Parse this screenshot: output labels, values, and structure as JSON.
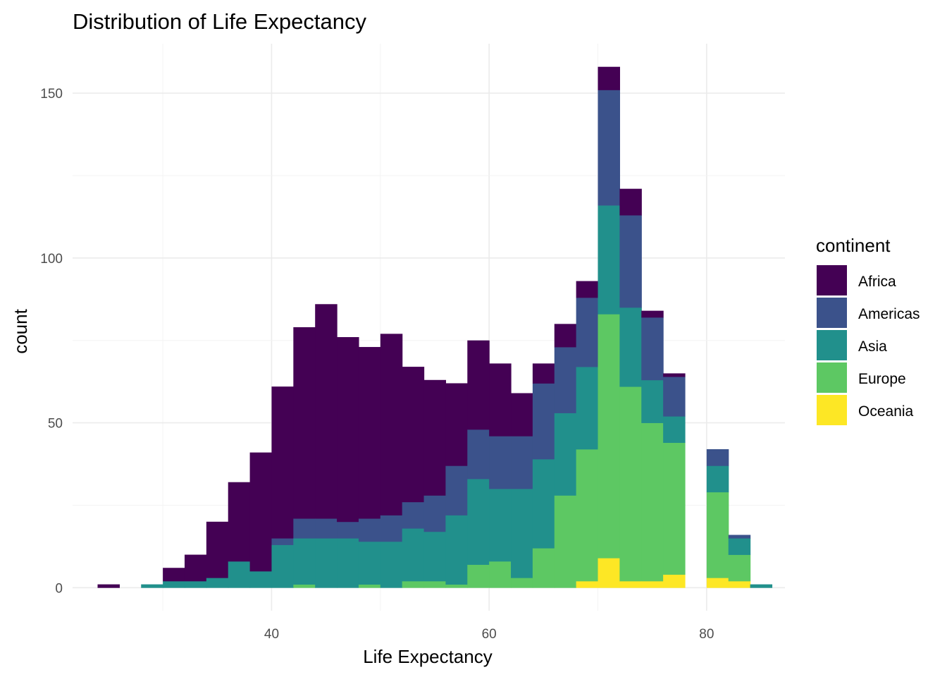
{
  "chart_data": {
    "type": "histogram-stacked",
    "title": "Distribution of Life Expectancy",
    "xlabel": "Life Expectancy",
    "ylabel": "count",
    "xlim": [
      21.7,
      87.2
    ],
    "ylim": [
      -7,
      165
    ],
    "x_ticks": [
      40,
      60,
      80
    ],
    "y_ticks": [
      0,
      50,
      100,
      150
    ],
    "grid": true,
    "legend": {
      "title": "continent",
      "placement": "right"
    },
    "bin_width": 2,
    "bin_starts": [
      24,
      26,
      28,
      30,
      32,
      34,
      36,
      38,
      40,
      42,
      44,
      46,
      48,
      50,
      52,
      54,
      56,
      58,
      60,
      62,
      64,
      66,
      68,
      70,
      72,
      74,
      76,
      78,
      80,
      82,
      84
    ],
    "series": [
      {
        "name": "Africa",
        "color": "#440154",
        "values": [
          1,
          0,
          0,
          4,
          8,
          17,
          24,
          36,
          46,
          58,
          65,
          56,
          52,
          55,
          41,
          35,
          25,
          27,
          22,
          13,
          6,
          7,
          5,
          7,
          8,
          2,
          1,
          0,
          0,
          0,
          0
        ]
      },
      {
        "name": "Americas",
        "color": "#3b528b",
        "values": [
          0,
          0,
          0,
          0,
          0,
          0,
          0,
          0,
          2,
          6,
          6,
          5,
          7,
          8,
          8,
          11,
          15,
          15,
          16,
          16,
          23,
          20,
          21,
          35,
          28,
          19,
          12,
          0,
          5,
          1,
          0
        ]
      },
      {
        "name": "Asia",
        "color": "#21908c",
        "values": [
          0,
          0,
          1,
          2,
          2,
          3,
          8,
          5,
          13,
          14,
          15,
          15,
          13,
          14,
          16,
          15,
          21,
          26,
          22,
          27,
          27,
          25,
          25,
          33,
          24,
          13,
          8,
          0,
          8,
          5,
          1
        ]
      },
      {
        "name": "Europe",
        "color": "#5dc863",
        "values": [
          0,
          0,
          0,
          0,
          0,
          0,
          0,
          0,
          0,
          1,
          0,
          0,
          1,
          0,
          2,
          2,
          1,
          7,
          8,
          3,
          12,
          28,
          40,
          74,
          59,
          48,
          40,
          0,
          26,
          8,
          0
        ]
      },
      {
        "name": "Oceania",
        "color": "#fde725",
        "values": [
          0,
          0,
          0,
          0,
          0,
          0,
          0,
          0,
          0,
          0,
          0,
          0,
          0,
          0,
          0,
          0,
          0,
          0,
          0,
          0,
          0,
          0,
          2,
          9,
          2,
          2,
          4,
          0,
          3,
          2,
          0
        ]
      }
    ]
  }
}
